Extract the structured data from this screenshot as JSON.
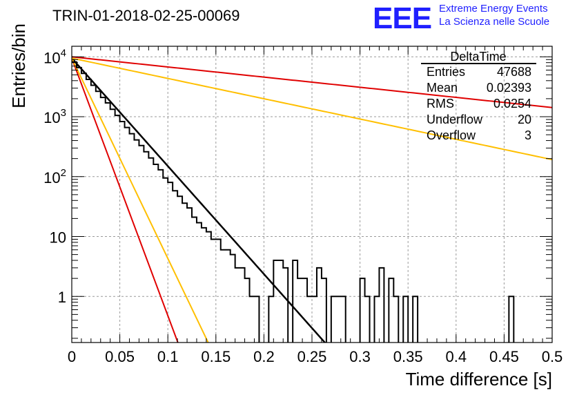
{
  "header": {
    "title": "TRIN-01-2018-02-25-00069",
    "logo_text": "EEE",
    "logo_line1": "Extreme Energy Events",
    "logo_line2": "La Scienza nelle Scuole"
  },
  "stats": {
    "title": "DeltaTime",
    "rows": [
      {
        "label": "Entries",
        "value": "47688"
      },
      {
        "label": "Mean",
        "value": "0.02393"
      },
      {
        "label": "RMS",
        "value": "0.0254"
      },
      {
        "label": "Underflow",
        "value": "20"
      },
      {
        "label": "Overflow",
        "value": "3"
      }
    ]
  },
  "colors": {
    "red": "#e00000",
    "orange": "#ffbf00",
    "black": "#000000",
    "grid": "#999999"
  },
  "chart_data": {
    "type": "histogram",
    "xlabel": "Time difference [s]",
    "ylabel": "Entries/bin",
    "xlim": [
      0,
      0.5
    ],
    "ylim": [
      0.17,
      15000
    ],
    "yscale": "log",
    "grid": true,
    "x_ticks": [
      0,
      0.05,
      0.1,
      0.15,
      0.2,
      0.25,
      0.3,
      0.35,
      0.4,
      0.45,
      0.5
    ],
    "x_tick_labels": [
      "0",
      "0.05",
      "0.1",
      "0.15",
      "0.2",
      "0.25",
      "0.3",
      "0.35",
      "0.4",
      "0.45",
      "0.5"
    ],
    "y_ticks": [
      1,
      10,
      100,
      1000,
      10000
    ],
    "y_tick_labels": [
      {
        "base": "1",
        "exp": ""
      },
      {
        "base": "10",
        "exp": ""
      },
      {
        "base": "10",
        "exp": "2"
      },
      {
        "base": "10",
        "exp": "3"
      },
      {
        "base": "10",
        "exp": "4"
      }
    ],
    "bin_width": 0.005,
    "histogram_values": [
      8200,
      6600,
      5300,
      4200,
      3350,
      2650,
      2100,
      1700,
      1330,
      1050,
      830,
      660,
      520,
      410,
      330,
      260,
      205,
      160,
      130,
      95,
      80,
      58,
      47,
      36,
      30,
      21,
      17,
      14,
      12,
      9,
      9,
      6,
      6,
      5,
      3,
      3,
      2,
      1,
      1,
      0,
      0,
      1,
      4,
      4,
      3,
      0,
      4,
      2,
      2,
      1,
      1,
      3,
      2,
      0,
      1,
      1,
      1,
      0,
      0,
      0,
      2,
      1,
      0,
      1,
      3,
      0,
      2,
      1,
      0,
      1,
      0,
      1,
      0,
      0,
      0,
      0,
      0,
      0,
      0,
      0,
      0,
      0,
      0,
      0,
      0,
      0,
      0,
      0,
      0,
      0,
      0,
      1,
      0,
      0,
      0,
      0,
      0,
      0,
      0,
      0
    ],
    "fit_lines": [
      {
        "color": "black",
        "amplitude": 9500,
        "rate": 41.5
      },
      {
        "color": "red",
        "amplitude": 10000,
        "rate": 3.9
      },
      {
        "color": "orange",
        "amplitude": 9500,
        "rate": 7.8
      },
      {
        "color": "red",
        "amplitude": 9500,
        "rate": 99
      },
      {
        "color": "orange",
        "amplitude": 9500,
        "rate": 77
      }
    ]
  }
}
